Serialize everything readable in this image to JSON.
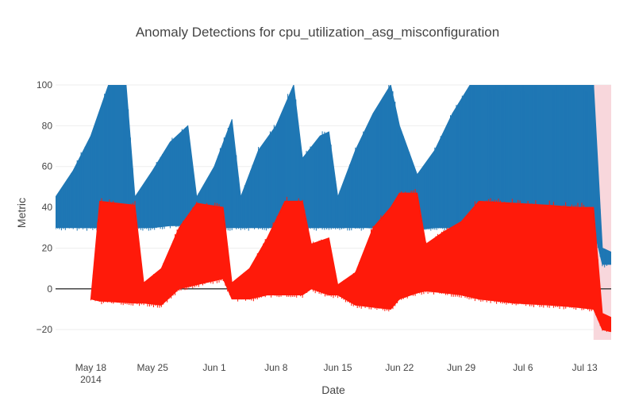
{
  "chart_data": {
    "type": "line",
    "title": "Anomaly Detections for cpu_utilization_asg_misconfiguration",
    "xlabel": "Date",
    "ylabel": "Metric",
    "xlim": [
      "2014-05-14",
      "2014-07-16"
    ],
    "ylim": [
      -25,
      100
    ],
    "grid": true,
    "x_ticks": [
      "May 18",
      "May 25",
      "Jun 1",
      "Jun 8",
      "Jun 15",
      "Jun 22",
      "Jun 29",
      "Jul 6",
      "Jul 13"
    ],
    "x_tick_dates": [
      "2014-05-18",
      "2014-05-25",
      "2014-06-01",
      "2014-06-08",
      "2014-06-15",
      "2014-06-22",
      "2014-06-29",
      "2014-07-06",
      "2014-07-13"
    ],
    "x_tick_year": "2014",
    "y_ticks": [
      -20,
      0,
      20,
      40,
      60,
      80,
      100
    ],
    "y_tick_labels": [
      "−20",
      "0",
      "20",
      "40",
      "60",
      "80",
      "100"
    ],
    "anomaly_window": {
      "start": "2014-07-14",
      "end": "2014-07-16",
      "color": "#f8d7dc"
    },
    "series": [
      {
        "color": "#1f77b4",
        "style": "band",
        "points": [
          {
            "x": "2014-05-14",
            "lo": 30,
            "hi": 45
          },
          {
            "x": "2014-05-16",
            "lo": 30,
            "hi": 58
          },
          {
            "x": "2014-05-18",
            "lo": 30,
            "hi": 75
          },
          {
            "x": "2014-05-20",
            "lo": 30,
            "hi": 100
          },
          {
            "x": "2014-05-22",
            "lo": 30,
            "hi": 100
          },
          {
            "x": "2014-05-23",
            "lo": 30,
            "hi": 45
          },
          {
            "x": "2014-05-25",
            "lo": 30,
            "hi": 58
          },
          {
            "x": "2014-05-27",
            "lo": 31,
            "hi": 72
          },
          {
            "x": "2014-05-29",
            "lo": 31,
            "hi": 80
          },
          {
            "x": "2014-05-30",
            "lo": 30,
            "hi": 45
          },
          {
            "x": "2014-06-01",
            "lo": 30,
            "hi": 60
          },
          {
            "x": "2014-06-03",
            "lo": 30,
            "hi": 83
          },
          {
            "x": "2014-06-04",
            "lo": 30,
            "hi": 45
          },
          {
            "x": "2014-06-06",
            "lo": 30,
            "hi": 68
          },
          {
            "x": "2014-06-08",
            "lo": 30,
            "hi": 80
          },
          {
            "x": "2014-06-10",
            "lo": 30,
            "hi": 100
          },
          {
            "x": "2014-06-11",
            "lo": 30,
            "hi": 64
          },
          {
            "x": "2014-06-13",
            "lo": 30,
            "hi": 75
          },
          {
            "x": "2014-06-14",
            "lo": 30,
            "hi": 77
          },
          {
            "x": "2014-06-15",
            "lo": 30,
            "hi": 45
          },
          {
            "x": "2014-06-17",
            "lo": 30,
            "hi": 68
          },
          {
            "x": "2014-06-19",
            "lo": 30,
            "hi": 86
          },
          {
            "x": "2014-06-21",
            "lo": 30,
            "hi": 100
          },
          {
            "x": "2014-06-22",
            "lo": 29,
            "hi": 80
          },
          {
            "x": "2014-06-24",
            "lo": 29,
            "hi": 56
          },
          {
            "x": "2014-06-26",
            "lo": 30,
            "hi": 68
          },
          {
            "x": "2014-06-28",
            "lo": 30,
            "hi": 86
          },
          {
            "x": "2014-06-30",
            "lo": 30,
            "hi": 100
          },
          {
            "x": "2014-07-04",
            "lo": 30,
            "hi": 100
          },
          {
            "x": "2014-07-08",
            "lo": 30,
            "hi": 100
          },
          {
            "x": "2014-07-12",
            "lo": 30,
            "hi": 100
          },
          {
            "x": "2014-07-14",
            "lo": 30,
            "hi": 100
          },
          {
            "x": "2014-07-15",
            "lo": 12,
            "hi": 20
          },
          {
            "x": "2014-07-16",
            "lo": 12,
            "hi": 18
          }
        ]
      },
      {
        "color": "#ff1a0a",
        "style": "band",
        "points": [
          {
            "x": "2014-05-18",
            "lo": -5,
            "hi": -5
          },
          {
            "x": "2014-05-19",
            "lo": -6,
            "hi": 43
          },
          {
            "x": "2014-05-23",
            "lo": -7,
            "hi": 41
          },
          {
            "x": "2014-05-24",
            "lo": -7,
            "hi": 3
          },
          {
            "x": "2014-05-26",
            "lo": -8,
            "hi": 10
          },
          {
            "x": "2014-05-28",
            "lo": 0,
            "hi": 30
          },
          {
            "x": "2014-05-30",
            "lo": 2,
            "hi": 42
          },
          {
            "x": "2014-06-02",
            "lo": 5,
            "hi": 40
          },
          {
            "x": "2014-06-03",
            "lo": -5,
            "hi": 3
          },
          {
            "x": "2014-06-05",
            "lo": -5,
            "hi": 10
          },
          {
            "x": "2014-06-07",
            "lo": -3,
            "hi": 25
          },
          {
            "x": "2014-06-09",
            "lo": -3,
            "hi": 43
          },
          {
            "x": "2014-06-11",
            "lo": -3,
            "hi": 43
          },
          {
            "x": "2014-06-12",
            "lo": 0,
            "hi": 22
          },
          {
            "x": "2014-06-14",
            "lo": -3,
            "hi": 25
          },
          {
            "x": "2014-06-15",
            "lo": -3,
            "hi": 2
          },
          {
            "x": "2014-06-17",
            "lo": -8,
            "hi": 8
          },
          {
            "x": "2014-06-19",
            "lo": -9,
            "hi": 30
          },
          {
            "x": "2014-06-21",
            "lo": -10,
            "hi": 40
          },
          {
            "x": "2014-06-22",
            "lo": -5,
            "hi": 47
          },
          {
            "x": "2014-06-24",
            "lo": -2,
            "hi": 47
          },
          {
            "x": "2014-06-25",
            "lo": -1,
            "hi": 22
          },
          {
            "x": "2014-06-27",
            "lo": -2,
            "hi": 28
          },
          {
            "x": "2014-06-29",
            "lo": -3,
            "hi": 33
          },
          {
            "x": "2014-07-01",
            "lo": -5,
            "hi": 43
          },
          {
            "x": "2014-07-05",
            "lo": -7,
            "hi": 42
          },
          {
            "x": "2014-07-09",
            "lo": -8,
            "hi": 41
          },
          {
            "x": "2014-07-12",
            "lo": -9,
            "hi": 40
          },
          {
            "x": "2014-07-14",
            "lo": -10,
            "hi": 40
          },
          {
            "x": "2014-07-15",
            "lo": -20,
            "hi": -12
          },
          {
            "x": "2014-07-16",
            "lo": -21,
            "hi": -14
          }
        ]
      }
    ]
  }
}
